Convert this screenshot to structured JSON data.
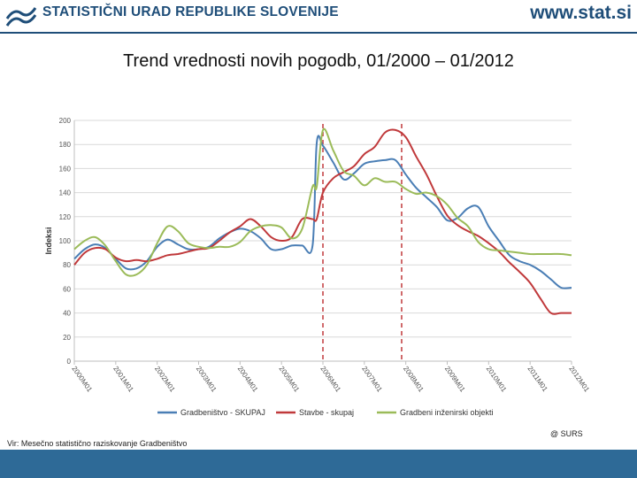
{
  "header": {
    "org_name": "STATISTIČNI URAD REPUBLIKE SLOVENIJE",
    "site_url": "www.stat.si",
    "logo_icon": "surs-logo-icon",
    "brand_color": "#1f4e79"
  },
  "slide_title": "Trend vrednosti novih pogodb, 01/2000 – 01/2012",
  "footer": {
    "source": "Vir: Mesečno statistično raziskovanje Gradbeništvo",
    "copyright": "@ SURS",
    "bar_color": "#2e6a97"
  },
  "chart_data": {
    "type": "line",
    "title": "",
    "xlabel": "",
    "ylabel": "Indeksi",
    "ylim": [
      0,
      200
    ],
    "yticks": [
      0,
      20,
      40,
      60,
      80,
      100,
      120,
      140,
      160,
      180,
      200
    ],
    "grid": true,
    "legend_position": "bottom",
    "x_start_year": 2000,
    "x_tick_labels": [
      "2000M01",
      "2001M01",
      "2002M01",
      "2003M01",
      "2004M01",
      "2005M01",
      "2006M01",
      "2007M01",
      "2008M01",
      "2009M01",
      "2010M01",
      "2011M01",
      "2012M01"
    ],
    "x": [
      2000.0,
      2000.25,
      2000.5,
      2000.75,
      2001.0,
      2001.25,
      2001.5,
      2001.75,
      2002.0,
      2002.25,
      2002.5,
      2002.75,
      2003.0,
      2003.25,
      2003.5,
      2003.75,
      2004.0,
      2004.25,
      2004.5,
      2004.75,
      2005.0,
      2005.25,
      2005.5,
      2005.75,
      2005.85,
      2006.0,
      2006.25,
      2006.5,
      2006.75,
      2007.0,
      2007.25,
      2007.5,
      2007.75,
      2008.0,
      2008.25,
      2008.5,
      2008.75,
      2009.0,
      2009.25,
      2009.5,
      2009.75,
      2010.0,
      2010.25,
      2010.5,
      2010.75,
      2011.0,
      2011.25,
      2011.5,
      2011.75,
      2012.0
    ],
    "vlines": [
      2006.0,
      2007.9
    ],
    "series": [
      {
        "name": "Gradbeništvo - SKUPAJ",
        "color": "#4a7eb5",
        "values": [
          85,
          93,
          97,
          94,
          85,
          77,
          77,
          83,
          95,
          101,
          97,
          93,
          93,
          95,
          102,
          107,
          110,
          108,
          102,
          93,
          93,
          96,
          96,
          96,
          181,
          179,
          165,
          151,
          156,
          164,
          166,
          167,
          167,
          155,
          144,
          136,
          128,
          117,
          119,
          127,
          128,
          112,
          100,
          88,
          83,
          80,
          75,
          68,
          61,
          61
        ]
      },
      {
        "name": "Stavbe - skupaj",
        "color": "#c0393b",
        "values": [
          80,
          90,
          94,
          93,
          86,
          83,
          84,
          83,
          85,
          88,
          89,
          91,
          93,
          94,
          100,
          107,
          112,
          118,
          112,
          103,
          100,
          103,
          118,
          118,
          118,
          140,
          152,
          157,
          162,
          172,
          178,
          190,
          192,
          186,
          170,
          155,
          137,
          121,
          113,
          108,
          104,
          98,
          91,
          82,
          74,
          65,
          52,
          40,
          40,
          40
        ]
      },
      {
        "name": "Gradbeni inženirski objekti",
        "color": "#9bbb59",
        "values": [
          93,
          100,
          103,
          96,
          83,
          72,
          72,
          80,
          98,
          112,
          108,
          98,
          95,
          94,
          95,
          95,
          99,
          108,
          112,
          113,
          111,
          102,
          110,
          145,
          145,
          192,
          175,
          158,
          154,
          146,
          152,
          149,
          149,
          143,
          139,
          140,
          137,
          130,
          119,
          112,
          99,
          93,
          92,
          91,
          90,
          89,
          89,
          89,
          89,
          88
        ]
      }
    ]
  }
}
